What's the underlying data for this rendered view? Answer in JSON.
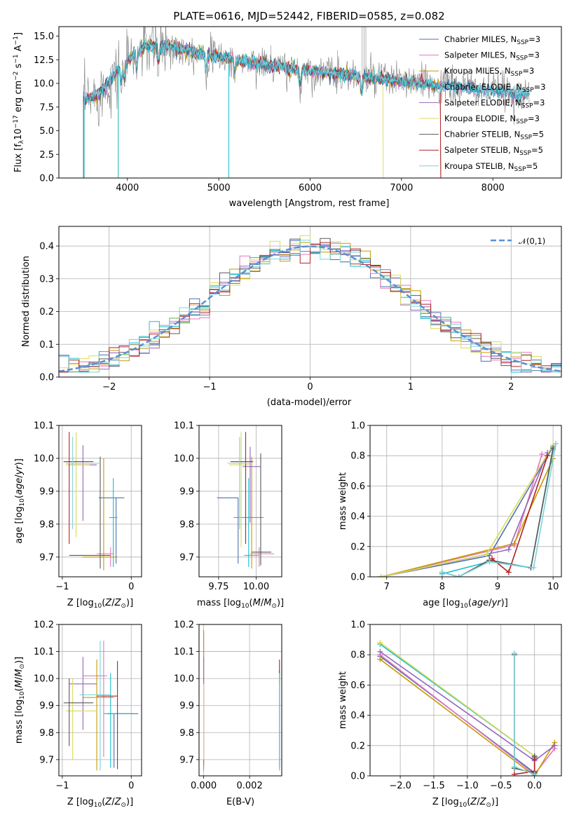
{
  "title": "PLATE=0616, MJD=52442, FIBERID=0585, z=0.082",
  "colors": [
    "#4c72b0",
    "#e377c2",
    "#c79a00",
    "#17becf",
    "#9467bd",
    "#dbdb5a",
    "#595959",
    "#b22222",
    "#7fd1d8"
  ],
  "chart_data": [
    {
      "id": "spectrum",
      "type": "line",
      "xlabel": "wavelength [Angstrom, rest frame]",
      "ylabel": "Flux [f_λ 10^-17 erg cm^-2 s^-1 A^-1]",
      "xlim": [
        3250,
        8750
      ],
      "ylim": [
        0,
        16
      ],
      "xticks": [
        4000,
        5000,
        6000,
        7000,
        8000
      ],
      "yticks": [
        0.0,
        2.5,
        5.0,
        7.5,
        10.0,
        12.5,
        15.0
      ],
      "legend_position": "top-right",
      "series": [
        {
          "name": "Chabrier MILES, N_SSP=3"
        },
        {
          "name": "Salpeter MILES, N_SSP=3"
        },
        {
          "name": "Kroupa MILES, N_SSP=3"
        },
        {
          "name": "Chabrier ELODIE, N_SSP=3"
        },
        {
          "name": "Salpeter ELODIE, N_SSP=3"
        },
        {
          "name": "Kroupa ELODIE, N_SSP=3"
        },
        {
          "name": "Chabrier STELIB, N_SSP=5"
        },
        {
          "name": "Salpeter STELIB, N_SSP=5"
        },
        {
          "name": "Kroupa STELIB, N_SSP=5"
        }
      ],
      "continuum": {
        "x": [
          3500,
          3700,
          3900,
          4000,
          4200,
          4500,
          5000,
          5500,
          6000,
          6500,
          7000,
          7500,
          8000,
          8400
        ],
        "y": [
          8.0,
          9.0,
          11.5,
          12.5,
          14.0,
          13.8,
          12.8,
          12.0,
          11.3,
          10.8,
          10.2,
          9.7,
          9.2,
          8.8
        ]
      }
    },
    {
      "id": "residuals",
      "type": "step",
      "xlabel": "(data-model)/error",
      "ylabel": "Normed distribution",
      "xlim": [
        -2.5,
        2.5
      ],
      "ylim": [
        0,
        0.46
      ],
      "xticks": [
        -2,
        -1,
        0,
        1,
        2
      ],
      "yticks": [
        0.0,
        0.1,
        0.2,
        0.3,
        0.4
      ],
      "legend": "𝒩(0,1)",
      "bin_width": 0.1
    },
    {
      "id": "z-age",
      "type": "errorbar",
      "xlabel": "Z [log10(Z/Z⊙)]",
      "ylabel": "age [log10(age/yr)]",
      "xlim": [
        -1.05,
        0.15
      ],
      "ylim": [
        9.64,
        10.1
      ],
      "xticks": [
        -1,
        0
      ],
      "yticks": [
        9.7,
        9.8,
        9.9,
        10.0,
        10.1
      ],
      "points": [
        {
          "x": -0.22,
          "y": 9.88,
          "xe": [
            0.25,
            0.12
          ],
          "ye": [
            0.2,
            0.0
          ]
        },
        {
          "x": -0.3,
          "y": 9.71,
          "xe": [
            0.2,
            0.05
          ],
          "ye": [
            0.04,
            0.02
          ]
        },
        {
          "x": -0.4,
          "y": 9.7,
          "xe": [
            0.3,
            0.2
          ],
          "ye": [
            0.04,
            0.3
          ]
        },
        {
          "x": -0.26,
          "y": 9.82,
          "xe": [
            0.06,
            0.06
          ],
          "ye": [
            0.15,
            0.12
          ]
        },
        {
          "x": -0.7,
          "y": 9.98,
          "xe": [
            0.2,
            0.2
          ],
          "ye": [
            0.17,
            0.06
          ]
        },
        {
          "x": -0.8,
          "y": 9.98,
          "xe": [
            0.15,
            0.2
          ],
          "ye": [
            0.22,
            0.1
          ]
        },
        {
          "x": -0.45,
          "y": 9.705,
          "xe": [
            0.45,
            0.15
          ],
          "ye": [
            0.04,
            0.3
          ]
        },
        {
          "x": -0.9,
          "y": 9.99,
          "xe": [
            0.08,
            0.35
          ],
          "ye": [
            0.25,
            0.09
          ]
        },
        {
          "x": -0.85,
          "y": 9.985,
          "xe": [
            0.1,
            0.4
          ],
          "ye": [
            0.2,
            0.08
          ]
        }
      ]
    },
    {
      "id": "mass-age",
      "type": "errorbar",
      "xlabel": "mass [log10(M/M⊙)]",
      "ylabel": "",
      "xlim": [
        9.62,
        10.17
      ],
      "ylim": [
        9.64,
        10.1
      ],
      "xticks": [
        9.75,
        10.0
      ],
      "tick_labels": [
        "9.75",
        "10.00"
      ],
      "yticks": [
        9.7,
        9.8,
        9.9,
        10.0,
        10.1
      ],
      "points": [
        {
          "x": 9.88,
          "y": 9.88,
          "xe": [
            0.14,
            0.0
          ],
          "ye": [
            0.2,
            0.0
          ]
        },
        {
          "x": 10.02,
          "y": 9.71,
          "xe": [
            0.06,
            0.1
          ],
          "ye": [
            0.04,
            0.02
          ]
        },
        {
          "x": 9.97,
          "y": 9.705,
          "xe": [
            0.05,
            0.05
          ],
          "ye": [
            0.04,
            0.3
          ]
        },
        {
          "x": 9.95,
          "y": 9.82,
          "xe": [
            0.1,
            0.1
          ],
          "ye": [
            0.15,
            0.12
          ]
        },
        {
          "x": 9.96,
          "y": 9.975,
          "xe": [
            0.05,
            0.07
          ],
          "ye": [
            0.17,
            0.06
          ]
        },
        {
          "x": 9.9,
          "y": 9.98,
          "xe": [
            0.08,
            0.06
          ],
          "ye": [
            0.25,
            0.1
          ]
        },
        {
          "x": 10.03,
          "y": 9.715,
          "xe": [
            0.06,
            0.07
          ],
          "ye": [
            0.04,
            0.3
          ]
        },
        {
          "x": 9.93,
          "y": 9.99,
          "xe": [
            0.1,
            0.05
          ],
          "ye": [
            0.25,
            0.09
          ]
        },
        {
          "x": 9.89,
          "y": 9.985,
          "xe": [
            0.08,
            0.07
          ],
          "ye": [
            0.2,
            0.08
          ]
        }
      ]
    },
    {
      "id": "age-weight",
      "type": "line",
      "xlabel": "age [log10(age/yr)]",
      "ylabel": "mass weight",
      "xlim": [
        6.7,
        10.15
      ],
      "ylim": [
        0,
        1.0
      ],
      "xticks": [
        7,
        8,
        9,
        10
      ],
      "yticks": [
        0.0,
        0.2,
        0.4,
        0.6,
        0.8,
        1.0
      ],
      "series": [
        {
          "x": [
            6.9,
            8.85,
            10.0
          ],
          "y": [
            0.0,
            0.14,
            0.86
          ]
        },
        {
          "x": [
            6.9,
            9.3,
            9.8
          ],
          "y": [
            0.0,
            0.21,
            0.81
          ]
        },
        {
          "x": [
            6.9,
            9.3,
            10.0
          ],
          "y": [
            0.0,
            0.22,
            0.78
          ]
        },
        {
          "x": [
            8.0,
            8.85,
            9.6,
            10.0
          ],
          "y": [
            0.02,
            0.1,
            0.06,
            0.84
          ]
        },
        {
          "x": [
            6.9,
            9.2,
            9.9
          ],
          "y": [
            0.0,
            0.18,
            0.82
          ]
        },
        {
          "x": [
            6.9,
            8.8,
            10.0
          ],
          "y": [
            0.0,
            0.15,
            0.87
          ]
        },
        {
          "x": [
            8.0,
            8.3,
            8.85,
            9.6,
            10.0
          ],
          "y": [
            0.03,
            0.0,
            0.11,
            0.06,
            0.85
          ]
        },
        {
          "x": [
            8.9,
            9.2,
            9.9
          ],
          "y": [
            0.12,
            0.03,
            0.8
          ]
        },
        {
          "x": [
            8.0,
            8.3,
            8.85,
            9.65,
            10.05
          ],
          "y": [
            0.03,
            0.0,
            0.1,
            0.06,
            0.88
          ]
        }
      ]
    },
    {
      "id": "z-mass",
      "type": "errorbar",
      "xlabel": "Z [log10(Z/Z⊙)]",
      "ylabel": "mass [log10(M/M⊙)]",
      "xlim": [
        -1.05,
        0.15
      ],
      "ylim": [
        9.64,
        10.2
      ],
      "xticks": [
        -1,
        0
      ],
      "yticks": [
        9.7,
        9.8,
        9.9,
        10.0,
        10.1,
        10.2
      ],
      "points": [
        {
          "x": -0.25,
          "y": 9.87,
          "xe": [
            0.1,
            0.35
          ],
          "ye": [
            0.2,
            0.0
          ]
        },
        {
          "x": -0.4,
          "y": 10.01,
          "xe": [
            0.3,
            0.05
          ],
          "ye": [
            0.3,
            0.13
          ]
        },
        {
          "x": -0.5,
          "y": 9.93,
          "xe": [
            0.2,
            0.25
          ],
          "ye": [
            0.27,
            0.14
          ]
        },
        {
          "x": -0.3,
          "y": 9.87,
          "xe": [
            0.1,
            0.3
          ],
          "ye": [
            0.2,
            0.15
          ]
        },
        {
          "x": -0.7,
          "y": 9.98,
          "xe": [
            0.2,
            0.2
          ],
          "ye": [
            0.17,
            0.1
          ]
        },
        {
          "x": -0.85,
          "y": 9.88,
          "xe": [
            0.1,
            0.35
          ],
          "ye": [
            0.18,
            0.12
          ]
        },
        {
          "x": -0.9,
          "y": 9.91,
          "xe": [
            0.08,
            0.35
          ],
          "ye": [
            0.16,
            0.09
          ]
        },
        {
          "x": -0.2,
          "y": 9.935,
          "xe": [
            0.3,
            0.0
          ],
          "ye": [
            0.27,
            0.13
          ]
        },
        {
          "x": -0.45,
          "y": 9.94,
          "xe": [
            0.3,
            0.15
          ],
          "ye": [
            0.28,
            0.2
          ]
        }
      ]
    },
    {
      "id": "ebv-mass",
      "type": "errorbar",
      "xlabel": "E(B-V)",
      "ylabel": "",
      "xlim": [
        -0.0002,
        0.0034
      ],
      "ylim": [
        9.64,
        10.2
      ],
      "xticks": [
        0.0,
        0.002
      ],
      "tick_labels": [
        "0.000",
        "0.002"
      ],
      "yticks": [
        9.7,
        9.8,
        9.9,
        10.0,
        10.1,
        10.2
      ],
      "points": [
        {
          "x": 0.0,
          "y": 9.87,
          "ye": [
            0.2,
            0.3
          ]
        },
        {
          "x": 0.0,
          "y": 10.01,
          "ye": [
            0.3,
            0.17
          ]
        },
        {
          "x": 0.0,
          "y": 9.93,
          "ye": [
            0.27,
            0.25
          ]
        },
        {
          "x": 0.0033,
          "y": 9.87,
          "ye": [
            0.21,
            0.15
          ]
        },
        {
          "x": 0.0,
          "y": 9.98,
          "ye": [
            0.3,
            0.1
          ]
        },
        {
          "x": 0.0,
          "y": 9.88,
          "ye": [
            0.18,
            0.1
          ]
        },
        {
          "x": 0.0033,
          "y": 9.93,
          "ye": [
            0.26,
            0.1
          ]
        },
        {
          "x": 0.0033,
          "y": 9.98,
          "ye": [
            0.0,
            0.09
          ]
        },
        {
          "x": 0.0033,
          "y": 9.92,
          "ye": [
            0.26,
            0.1
          ]
        }
      ]
    },
    {
      "id": "z-weight",
      "type": "line",
      "xlabel": "Z [log10(Z/Z⊙)]",
      "ylabel": "mass weight",
      "xlim": [
        -2.45,
        0.4
      ],
      "ylim": [
        0,
        1.0
      ],
      "xticks": [
        -2.0,
        -1.5,
        -1.0,
        -0.5,
        0.0
      ],
      "yticks": [
        0.0,
        0.2,
        0.4,
        0.6,
        0.8,
        1.0
      ],
      "series": [
        {
          "x": [
            -2.3,
            0.0,
            0.0
          ],
          "y": [
            0.79,
            0.02,
            0.12
          ]
        },
        {
          "x": [
            -2.3,
            0.0,
            0.3
          ],
          "y": [
            0.8,
            0.01,
            0.18
          ]
        },
        {
          "x": [
            -2.3,
            0.0,
            0.3
          ],
          "y": [
            0.77,
            0.0,
            0.22
          ]
        },
        {
          "x": [
            -2.3,
            0.0
          ],
          "y": [
            0.87,
            0.13
          ]
        },
        {
          "x": [
            -2.3,
            0.0,
            0.3
          ],
          "y": [
            0.82,
            0.1,
            0.2
          ]
        },
        {
          "x": [
            -2.3,
            0.0
          ],
          "y": [
            0.88,
            0.13
          ]
        },
        {
          "x": [
            -0.3,
            -0.3,
            0.0,
            0.0
          ],
          "y": [
            0.8,
            0.05,
            0.02,
            0.13
          ]
        },
        {
          "x": [
            -0.3,
            0.0,
            0.0
          ],
          "y": [
            0.01,
            0.03,
            0.11
          ]
        },
        {
          "x": [
            -0.3,
            -0.3,
            0.0
          ],
          "y": [
            0.81,
            0.06,
            0.01
          ]
        }
      ]
    }
  ]
}
